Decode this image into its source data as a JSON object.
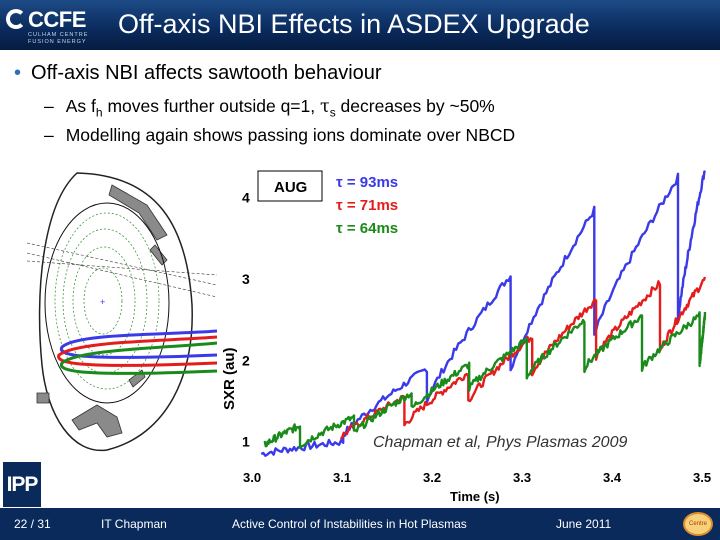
{
  "header": {
    "logo_text": "CCFE",
    "logo_sub1": "CULHAM CENTRE",
    "logo_sub2": "FUSION ENERGY",
    "title": "Off-axis NBI Effects in ASDEX Upgrade"
  },
  "bullets": {
    "main": "Off-axis NBI affects sawtooth behaviour",
    "sub1_pre": "As f",
    "sub1_subscript": "h",
    "sub1_mid": " moves further outside q=1, ",
    "sub1_tau": "τ",
    "sub1_tau_sub": "s",
    "sub1_post": " decreases by ~50%",
    "sub2": "Modelling again shows passing ions dominate over NBCD"
  },
  "colors": {
    "title_bar": "#0a2a5c",
    "blue": "#3a3ae8",
    "red": "#e41c1c",
    "green": "#1a8a1a"
  },
  "chart_data": {
    "type": "line",
    "title": "",
    "xlabel": "Time (s)",
    "ylabel": "SXR (au)",
    "xlim": [
      3.0,
      3.5
    ],
    "ylim": [
      0.8,
      4.4
    ],
    "xticks": [
      "3.0",
      "3.1",
      "3.2",
      "3.3",
      "3.4",
      "3.5"
    ],
    "yticks": [
      "1",
      "2",
      "3",
      "4"
    ],
    "badge": "AUG",
    "citation": "Chapman et al, Phys Plasmas 2009",
    "series": [
      {
        "name": "τ = 93ms",
        "color": "#3a3ae8",
        "tau_s": 0.093,
        "crashes": [
          3.007,
          3.098,
          3.191,
          3.284,
          3.377,
          3.47
        ],
        "peaks": [
          1.0,
          1.9,
          3.05,
          3.85,
          4.25,
          4.35
        ],
        "troughs": [
          0.85,
          1.08,
          1.5,
          1.88,
          2.3,
          2.5
        ]
      },
      {
        "name": "τ = 71ms",
        "color": "#e41c1c",
        "tau_s": 0.071,
        "crashes": [
          3.095,
          3.166,
          3.237,
          3.308,
          3.379,
          3.45
        ],
        "peaks": [
          1.55,
          1.85,
          2.3,
          2.75,
          2.95,
          3.0
        ],
        "troughs": [
          1.05,
          1.2,
          1.5,
          1.85,
          2.05,
          2.1
        ]
      },
      {
        "name": "τ = 64ms",
        "color": "#1a8a1a",
        "tau_s": 0.064,
        "crashes": [
          3.01,
          3.05,
          3.11,
          3.174,
          3.238,
          3.302,
          3.366,
          3.43,
          3.494
        ],
        "peaks": [
          1.2,
          1.3,
          1.6,
          1.95,
          2.25,
          2.5,
          2.55,
          2.55,
          2.55
        ],
        "troughs": [
          0.95,
          0.95,
          1.1,
          1.4,
          1.65,
          1.8,
          1.9,
          1.9,
          1.9
        ]
      }
    ]
  },
  "cross_section": {
    "label": "poloidal cross-section with NBI beam paths"
  },
  "footer": {
    "page": "22 / 31",
    "author": "IT Chapman",
    "talk": "Active Control of Instabilities in Hot Plasmas",
    "date": "June 2011",
    "ipp": "IPP",
    "logo": "Centre"
  }
}
